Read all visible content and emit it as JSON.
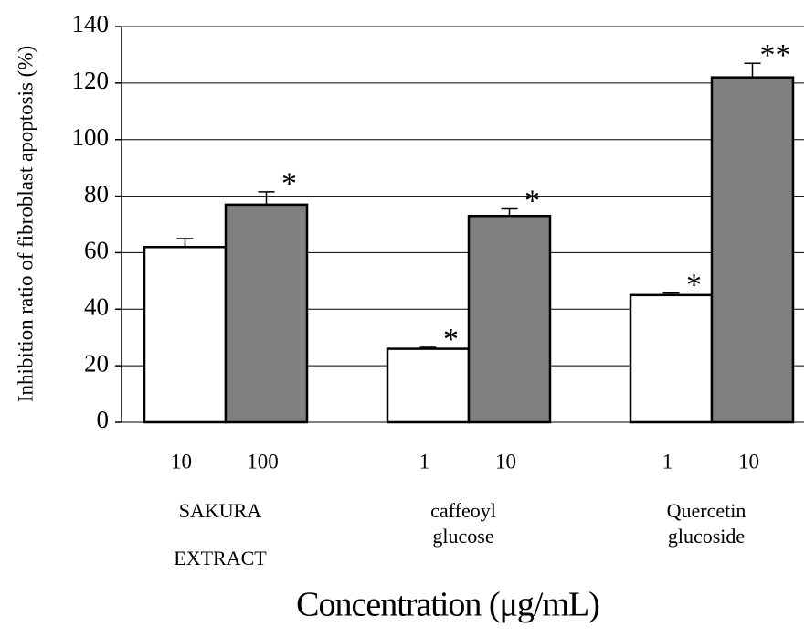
{
  "chart_data": {
    "type": "bar",
    "y_label": "Inhibition ratio of fibroblast apoptosis (%)",
    "x_label": "Concentration (μg/mL)",
    "categories": [
      "10",
      "100",
      "1",
      "10",
      "1",
      "10"
    ],
    "groups": [
      [
        "SAKURA",
        "EXTRACT"
      ],
      [
        "caffeoyl",
        "glucose"
      ],
      [
        "Quercetin",
        "glucoside"
      ]
    ],
    "values": [
      62,
      77,
      26,
      73,
      45,
      122
    ],
    "errors": [
      3,
      4.5,
      0.5,
      2.5,
      0.7,
      5
    ],
    "annotations": [
      null,
      "*",
      "*",
      "*",
      "*",
      "**"
    ],
    "colors": [
      "#ffffff",
      "#808080",
      "#ffffff",
      "#808080",
      "#ffffff",
      "#808080"
    ],
    "ylim": [
      0,
      140
    ],
    "yticks": [
      0,
      20,
      40,
      60,
      80,
      100,
      120,
      140
    ],
    "grid": true
  }
}
